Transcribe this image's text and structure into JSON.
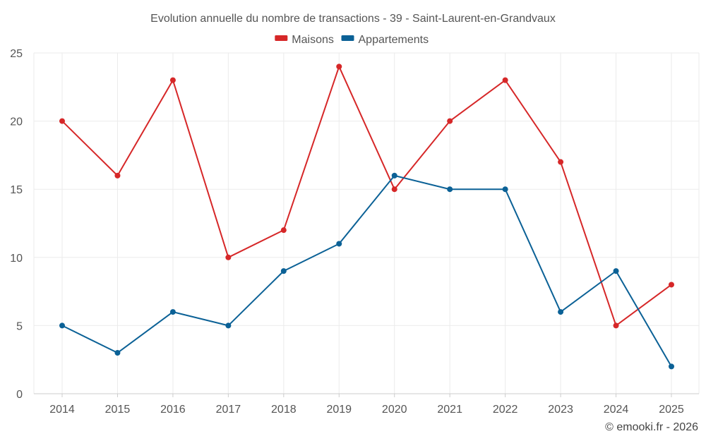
{
  "chart_data": {
    "type": "line",
    "title": "Evolution annuelle du nombre de transactions - 39 - Saint-Laurent-en-Grandvaux",
    "xlabel": "",
    "ylabel": "",
    "categories": [
      "2014",
      "2015",
      "2016",
      "2017",
      "2018",
      "2019",
      "2020",
      "2021",
      "2022",
      "2023",
      "2024",
      "2025"
    ],
    "ylim": [
      0,
      25
    ],
    "yticks": [
      0,
      5,
      10,
      15,
      20,
      25
    ],
    "grid": true,
    "legend_position": "top-center",
    "series": [
      {
        "name": "Maisons",
        "color": "#d62728",
        "values": [
          20,
          16,
          23,
          10,
          12,
          24,
          15,
          20,
          23,
          17,
          5,
          8
        ]
      },
      {
        "name": "Appartements",
        "color": "#0b6196",
        "values": [
          5,
          3,
          6,
          5,
          9,
          11,
          16,
          15,
          15,
          6,
          9,
          2
        ]
      }
    ]
  },
  "credit": "© emooki.fr - 2026"
}
